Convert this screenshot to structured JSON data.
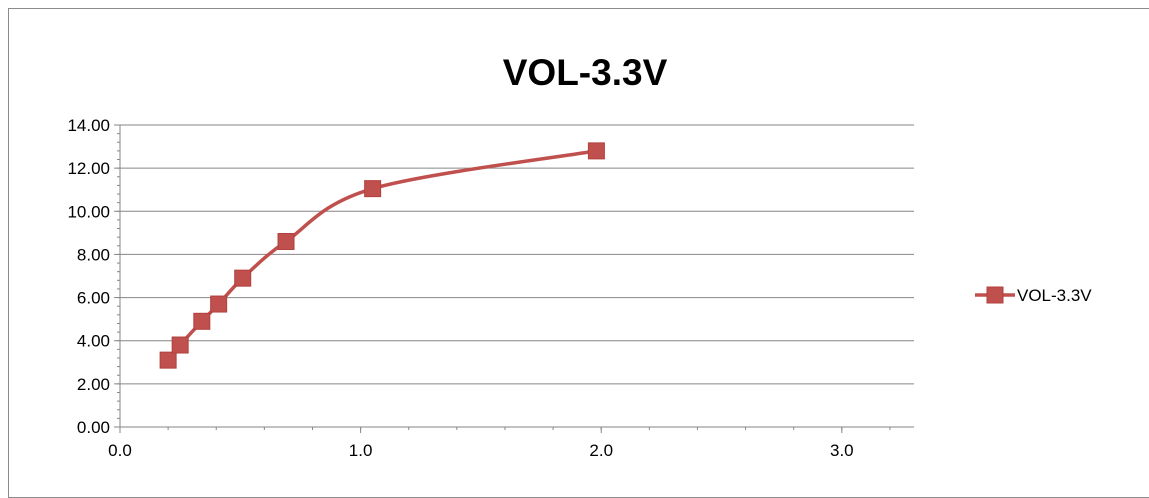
{
  "chart_data": {
    "type": "scatter",
    "title": "VOL-3.3V",
    "xlabel": "",
    "ylabel": "",
    "xlim": [
      0,
      3.3
    ],
    "ylim": [
      0,
      14
    ],
    "x_ticks": [
      0,
      1,
      2,
      3
    ],
    "x_tick_labels": [
      "0.0",
      "1.0",
      "2.0",
      "3.0"
    ],
    "y_ticks": [
      0,
      2,
      4,
      6,
      8,
      10,
      12,
      14
    ],
    "y_tick_labels": [
      "0.00",
      "2.00",
      "4.00",
      "6.00",
      "8.00",
      "10.00",
      "12.00",
      "14.00"
    ],
    "grid": "horizontal major gridlines",
    "smoothed_line": true,
    "legend_position": "right",
    "series": [
      {
        "name": "VOL-3.3V",
        "color": "#c0504d",
        "marker": "square",
        "x": [
          0.2,
          0.25,
          0.34,
          0.41,
          0.51,
          0.69,
          1.05,
          1.98
        ],
        "y": [
          3.1,
          3.8,
          4.9,
          5.7,
          6.9,
          8.6,
          11.05,
          12.8
        ]
      }
    ]
  }
}
